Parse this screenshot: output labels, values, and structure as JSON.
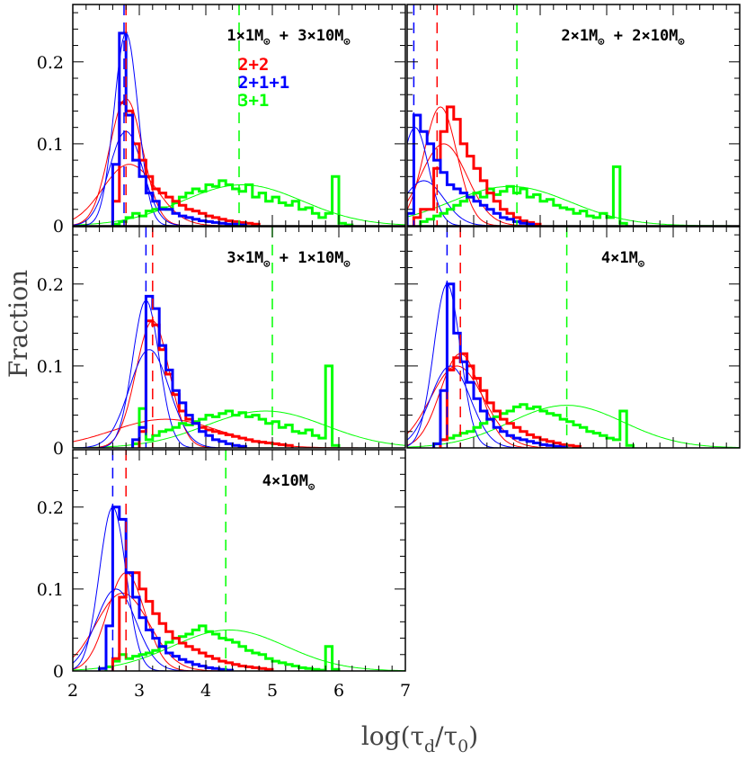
{
  "figure": {
    "ylabel": "Fraction",
    "xlabel_main": "log(τ",
    "xlabel_sub1": "d",
    "xlabel_mid": "/τ",
    "xlabel_sub2": "0",
    "xlabel_end": ")"
  },
  "legend": [
    {
      "label": "2+2",
      "color": "#ff0000"
    },
    {
      "label": "2+1+1",
      "color": "#0000ff"
    },
    {
      "label": "3+1",
      "color": "#00ff00"
    }
  ],
  "chart_data": {
    "type": "histogram",
    "xlim": [
      2,
      7
    ],
    "ylim": [
      0,
      0.27
    ],
    "xticks": [
      "2",
      "3",
      "4",
      "5",
      "6",
      "7"
    ],
    "yticks": [
      "0",
      "0.1",
      "0.2"
    ],
    "panels": [
      {
        "label": "1×1M⊙ + 3×10M⊙",
        "label_parts": {
          "a": "1×1M",
          "b": " + 3×10M"
        },
        "medians": {
          "2+2": 2.8,
          "2+1+1": 2.77,
          "3+1": 4.5
        },
        "fits": {
          "2+1+1": [
            {
              "a": 0.235,
              "mu": 2.8,
              "s": 0.18
            },
            {
              "a": 0.115,
              "mu": 2.8,
              "s": 0.25
            }
          ],
          "2+2": [
            {
              "a": 0.155,
              "mu": 2.8,
              "s": 0.25
            },
            {
              "a": 0.075,
              "mu": 2.85,
              "s": 0.4
            }
          ],
          "3+1": [
            {
              "a": 0.05,
              "mu": 4.55,
              "s": 0.9
            }
          ]
        },
        "hist": {
          "2+1+1": {
            "start": 2.6,
            "values": [
              0.075,
              0.235,
              0.135,
              0.08,
              0.06,
              0.04,
              0.03,
              0.02,
              0.02,
              0.015,
              0.012,
              0.01,
              0.008,
              0.006,
              0.005,
              0.004,
              0.003,
              0.002,
              0.002,
              0.001
            ]
          },
          "2+2": {
            "start": 2.6,
            "values": [
              0.03,
              0.15,
              0.14,
              0.1,
              0.08,
              0.06,
              0.045,
              0.04,
              0.035,
              0.03,
              0.025,
              0.02,
              0.018,
              0.015,
              0.012,
              0.01,
              0.008,
              0.006,
              0.005,
              0.004,
              0.003,
              0.002
            ]
          },
          "3+1": {
            "start": 2.6,
            "values": [
              0.002,
              0.005,
              0.01,
              0.015,
              0.012,
              0.018,
              0.02,
              0.022,
              0.02,
              0.028,
              0.035,
              0.04,
              0.045,
              0.042,
              0.05,
              0.048,
              0.055,
              0.05,
              0.045,
              0.042,
              0.05,
              0.035,
              0.04,
              0.03,
              0.035,
              0.028,
              0.025,
              0.03,
              0.02,
              0.022,
              0.015,
              0.01,
              0.015,
              0.06,
              0.003,
              0.001
            ]
          }
        }
      },
      {
        "label": "2×1M⊙ + 2×10M⊙",
        "label_parts": {
          "a": "2×1M",
          "b": " + 2×10M"
        },
        "medians": {
          "2+2": 2.45,
          "2+1+1": 2.1,
          "3+1": 3.65
        },
        "fits": {
          "2+1+1": [
            {
              "a": 0.12,
              "mu": 2.12,
              "s": 0.2
            },
            {
              "a": 0.055,
              "mu": 2.25,
              "s": 0.3
            }
          ],
          "2+2": [
            {
              "a": 0.145,
              "mu": 2.5,
              "s": 0.25
            },
            {
              "a": 0.1,
              "mu": 2.55,
              "s": 0.35
            }
          ],
          "3+1": [
            {
              "a": 0.048,
              "mu": 3.55,
              "s": 0.9
            }
          ]
        },
        "hist": {
          "2+1+1": {
            "start": 2.0,
            "values": [
              0.015,
              0.135,
              0.115,
              0.1,
              0.08,
              0.065,
              0.05,
              0.045,
              0.04,
              0.035,
              0.03,
              0.025,
              0.02,
              0.015,
              0.01,
              0.008,
              0.005,
              0.003,
              0.002
            ]
          },
          "2+2": {
            "start": 2.1,
            "values": [
              0.01,
              0.02,
              0.02,
              0.07,
              0.115,
              0.145,
              0.13,
              0.1,
              0.085,
              0.07,
              0.055,
              0.04,
              0.03,
              0.02,
              0.015,
              0.01,
              0.006,
              0.004,
              0.002
            ]
          },
          "3+1": {
            "start": 2.2,
            "values": [
              0.005,
              0.008,
              0.012,
              0.015,
              0.02,
              0.025,
              0.03,
              0.035,
              0.04,
              0.035,
              0.045,
              0.038,
              0.042,
              0.048,
              0.04,
              0.045,
              0.035,
              0.038,
              0.03,
              0.032,
              0.025,
              0.022,
              0.02,
              0.015,
              0.018,
              0.012,
              0.01,
              0.015,
              0.01,
              0.072,
              0.003
            ]
          }
        }
      },
      {
        "label": "3×1M⊙ + 1×10M⊙",
        "label_parts": {
          "a": "3×1M",
          "b": " + 1×10M"
        },
        "medians": {
          "2+2": 3.2,
          "2+1+1": 3.1,
          "3+1": 5.0
        },
        "fits": {
          "2+1+1": [
            {
              "a": 0.18,
              "mu": 3.1,
              "s": 0.2
            },
            {
              "a": 0.12,
              "mu": 3.15,
              "s": 0.3
            }
          ],
          "2+2": [
            {
              "a": 0.155,
              "mu": 3.2,
              "s": 0.25
            },
            {
              "a": 0.035,
              "mu": 3.4,
              "s": 0.8
            }
          ],
          "3+1": [
            {
              "a": 0.045,
              "mu": 4.9,
              "s": 0.9
            }
          ]
        },
        "hist": {
          "2+1+1": {
            "start": 2.9,
            "values": [
              0.01,
              0.025,
              0.185,
              0.17,
              0.125,
              0.095,
              0.07,
              0.055,
              0.04,
              0.03,
              0.02,
              0.015,
              0.01,
              0.008,
              0.005,
              0.003,
              0.002
            ]
          },
          "2+2": {
            "start": 3.0,
            "values": [
              0.02,
              0.155,
              0.15,
              0.12,
              0.09,
              0.065,
              0.045,
              0.035,
              0.03,
              0.025,
              0.022,
              0.02,
              0.018,
              0.016,
              0.014,
              0.012,
              0.01,
              0.008,
              0.007,
              0.006,
              0.005,
              0.004,
              0.003
            ]
          },
          "3+1": {
            "start": 2.9,
            "values": [
              0.005,
              0.048,
              0.01,
              0.015,
              0.02,
              0.022,
              0.025,
              0.03,
              0.028,
              0.032,
              0.035,
              0.04,
              0.038,
              0.042,
              0.045,
              0.04,
              0.043,
              0.038,
              0.04,
              0.035,
              0.03,
              0.032,
              0.025,
              0.028,
              0.02,
              0.018,
              0.022,
              0.015,
              0.012,
              0.1,
              0.003
            ]
          }
        }
      },
      {
        "label": "4×1M⊙",
        "label_parts": {
          "a": "4×1M",
          "b": ""
        },
        "medians": {
          "2+2": 2.8,
          "2+1+1": 2.6,
          "3+1": 4.4
        },
        "fits": {
          "2+1+1": [
            {
              "a": 0.2,
              "mu": 2.6,
              "s": 0.2
            },
            {
              "a": 0.1,
              "mu": 2.65,
              "s": 0.3
            }
          ],
          "2+2": [
            {
              "a": 0.115,
              "mu": 2.8,
              "s": 0.3
            },
            {
              "a": 0.1,
              "mu": 2.75,
              "s": 0.4
            }
          ],
          "3+1": [
            {
              "a": 0.052,
              "mu": 4.4,
              "s": 0.85
            }
          ]
        },
        "hist": {
          "2+1+1": {
            "start": 2.4,
            "values": [
              0.005,
              0.07,
              0.2,
              0.14,
              0.105,
              0.08,
              0.06,
              0.045,
              0.035,
              0.025,
              0.02,
              0.015,
              0.012,
              0.01,
              0.008,
              0.006,
              0.004,
              0.003,
              0.002,
              0.001
            ]
          },
          "2+2": {
            "start": 2.5,
            "values": [
              0.01,
              0.095,
              0.11,
              0.115,
              0.1,
              0.085,
              0.07,
              0.055,
              0.045,
              0.035,
              0.03,
              0.025,
              0.02,
              0.016,
              0.013,
              0.01,
              0.008,
              0.006,
              0.004,
              0.003,
              0.002
            ]
          },
          "3+1": {
            "start": 2.4,
            "values": [
              0.005,
              0.01,
              0.012,
              0.015,
              0.018,
              0.02,
              0.025,
              0.03,
              0.035,
              0.038,
              0.042,
              0.045,
              0.05,
              0.053,
              0.048,
              0.05,
              0.045,
              0.042,
              0.04,
              0.035,
              0.032,
              0.028,
              0.025,
              0.02,
              0.018,
              0.015,
              0.012,
              0.01,
              0.045,
              0.003
            ]
          }
        }
      },
      {
        "label": "4×10M⊙",
        "label_parts": {
          "a": "4×10M",
          "b": ""
        },
        "medians": {
          "2+2": 2.8,
          "2+1+1": 2.6,
          "3+1": 4.3
        },
        "fits": {
          "2+1+1": [
            {
              "a": 0.2,
              "mu": 2.6,
              "s": 0.2
            },
            {
              "a": 0.1,
              "mu": 2.65,
              "s": 0.3
            }
          ],
          "2+2": [
            {
              "a": 0.12,
              "mu": 2.8,
              "s": 0.28
            },
            {
              "a": 0.095,
              "mu": 2.75,
              "s": 0.4
            }
          ],
          "3+1": [
            {
              "a": 0.05,
              "mu": 4.35,
              "s": 0.85
            }
          ]
        },
        "hist": {
          "2+1+1": {
            "start": 2.4,
            "values": [
              0.003,
              0.055,
              0.2,
              0.185,
              0.12,
              0.09,
              0.065,
              0.05,
              0.04,
              0.03,
              0.022,
              0.018,
              0.014,
              0.011,
              0.008,
              0.006,
              0.004,
              0.003,
              0.002,
              0.001
            ]
          },
          "2+2": {
            "start": 2.6,
            "values": [
              0.015,
              0.09,
              0.12,
              0.12,
              0.1,
              0.085,
              0.07,
              0.058,
              0.048,
              0.04,
              0.034,
              0.03,
              0.026,
              0.022,
              0.018,
              0.015,
              0.012,
              0.01,
              0.008,
              0.006,
              0.005,
              0.004,
              0.003,
              0.002
            ]
          },
          "3+1": {
            "start": 2.5,
            "values": [
              0.005,
              0.012,
              0.02,
              0.015,
              0.018,
              0.02,
              0.022,
              0.025,
              0.03,
              0.035,
              0.04,
              0.042,
              0.045,
              0.05,
              0.055,
              0.048,
              0.045,
              0.04,
              0.038,
              0.035,
              0.03,
              0.025,
              0.022,
              0.02,
              0.015,
              0.012,
              0.01,
              0.008,
              0.006,
              0.004,
              0.003,
              0.002,
              0.001,
              0.03,
              0.002
            ]
          }
        }
      }
    ],
    "series_colors": {
      "2+2": "#ff0000",
      "2+1+1": "#0000ff",
      "3+1": "#00ff00"
    },
    "bin_width": 0.1
  }
}
